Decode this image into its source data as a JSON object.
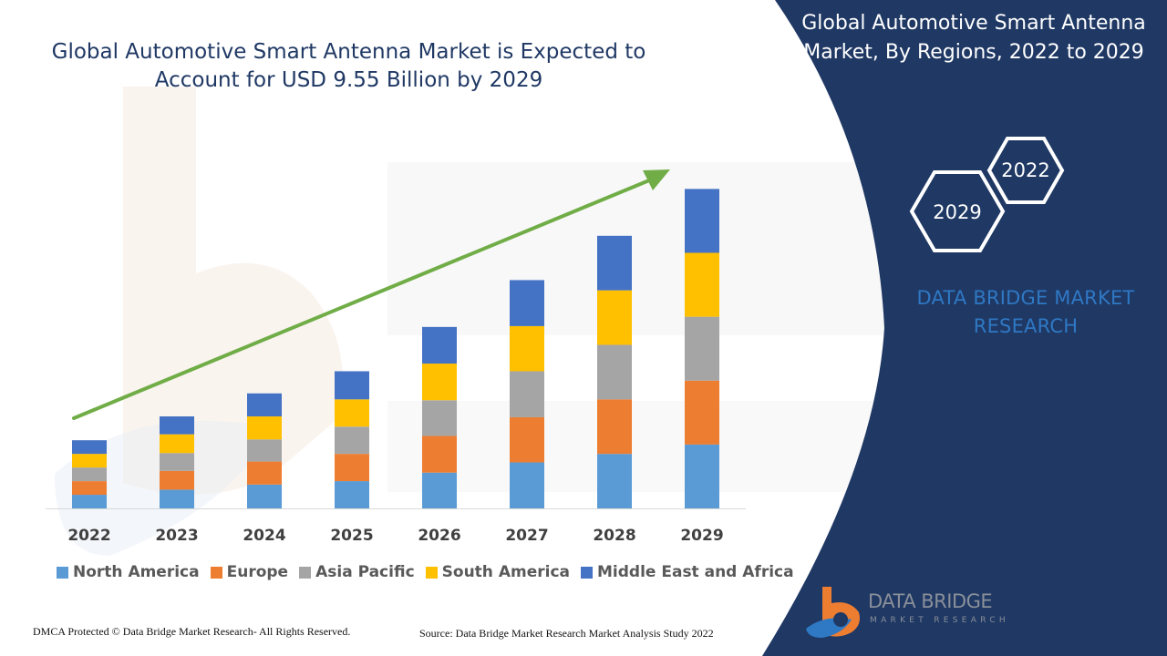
{
  "title_lines": [
    "Global Automotive Smart Antenna Market is Expected to",
    "Account for USD 9.55 Billion by 2029"
  ],
  "side_panel": {
    "title_lines": [
      "Global Automotive Smart Antenna",
      "Market, By Regions, 2022 to 2029"
    ],
    "hex_labels": [
      "2022",
      "2029"
    ],
    "brand_lines": [
      "DATA BRIDGE MARKET",
      "RESEARCH"
    ],
    "logo_name": "DATA BRIDGE",
    "logo_sub": "MARKET RESEARCH"
  },
  "footer": {
    "left": "DMCA Protected © Data Bridge Market Research- All Rights Reserved.",
    "right": "Source: Data Bridge Market Research Market Analysis Study 2022"
  },
  "colors": {
    "panel_bg": "#1f3864",
    "title": "#1f3864",
    "arrow": "#70ad47",
    "brand_blue": "#2f78c4",
    "logo_orange": "#ed7d31"
  },
  "chart_data": {
    "type": "bar",
    "stacked": true,
    "categories": [
      "2022",
      "2023",
      "2024",
      "2025",
      "2026",
      "2027",
      "2028",
      "2029"
    ],
    "series": [
      {
        "name": "North America",
        "color": "#5b9bd5",
        "values": [
          0.8,
          1.1,
          1.4,
          1.6,
          2.1,
          2.7,
          3.2,
          3.75
        ]
      },
      {
        "name": "Europe",
        "color": "#ed7d31",
        "values": [
          0.8,
          1.1,
          1.35,
          1.6,
          2.15,
          2.65,
          3.2,
          3.75
        ]
      },
      {
        "name": "Asia Pacific",
        "color": "#a5a5a5",
        "values": [
          0.8,
          1.05,
          1.3,
          1.6,
          2.1,
          2.7,
          3.2,
          3.75
        ]
      },
      {
        "name": "South America",
        "color": "#ffc000",
        "values": [
          0.8,
          1.1,
          1.35,
          1.6,
          2.15,
          2.65,
          3.2,
          3.75
        ]
      },
      {
        "name": "Middle East and Africa",
        "color": "#4472c4",
        "values": [
          0.8,
          1.05,
          1.35,
          1.65,
          2.15,
          2.7,
          3.2,
          3.75
        ]
      }
    ],
    "ylim": [
      0,
      20
    ],
    "legend_position": "bottom",
    "grid": false,
    "trend_arrow": true
  }
}
